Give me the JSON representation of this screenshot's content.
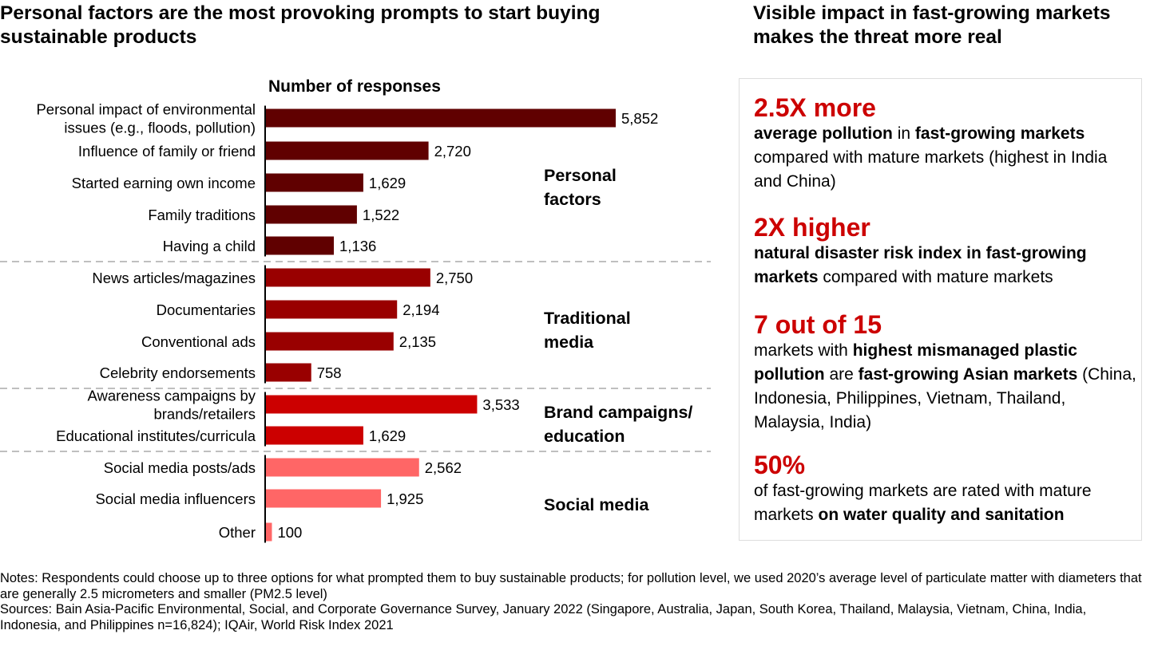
{
  "left_title": "Personal factors are the most provoking prompts to start buying sustainable products",
  "right_title": "Visible impact in fast-growing markets makes the threat more real",
  "chart_data": {
    "type": "bar",
    "orientation": "horizontal",
    "title": "Personal factors are the most provoking prompts to start buying sustainable products",
    "xlabel": "Number of responses",
    "xlim": [
      0,
      5852
    ],
    "grid": false,
    "groups": [
      {
        "name": "Personal factors",
        "color": "#600000",
        "categories": [
          "Personal impact of environmental issues (e.g., floods, pollution)",
          "Influence of family or friend",
          "Started earning own income",
          "Family traditions",
          "Having a child"
        ],
        "values": [
          5852,
          2720,
          1629,
          1522,
          1136
        ],
        "labels": [
          "5,852",
          "2,720",
          "1,629",
          "1,522",
          "1,136"
        ]
      },
      {
        "name": "Traditional media",
        "color": "#990000",
        "categories": [
          "News articles/magazines",
          "Documentaries",
          "Conventional ads",
          "Celebrity endorsements"
        ],
        "values": [
          2750,
          2194,
          2135,
          758
        ],
        "labels": [
          "2,750",
          "2,194",
          "2,135",
          "758"
        ]
      },
      {
        "name": "Brand campaigns/ education",
        "color": "#cc0000",
        "categories": [
          "Awareness campaigns by brands/retailers",
          "Educational institutes/curricula"
        ],
        "values": [
          3533,
          1629
        ],
        "labels": [
          "3,533",
          "1,629"
        ]
      },
      {
        "name": "Social media",
        "color": "#ff6666",
        "categories": [
          "Social media posts/ads",
          "Social media influencers",
          "Other"
        ],
        "values": [
          2562,
          1925,
          100
        ],
        "labels": [
          "2,562",
          "1,925",
          "100"
        ]
      }
    ]
  },
  "stats": [
    {
      "headline": "2.5X more",
      "segments": [
        {
          "t": "average pollution",
          "b": true
        },
        {
          "t": " in ",
          "b": false
        },
        {
          "t": "fast-growing markets",
          "b": true
        },
        {
          "t": " compared with mature markets (highest in India and China)",
          "b": false
        }
      ]
    },
    {
      "headline": "2X higher",
      "segments": [
        {
          "t": "natural disaster risk index in fast-growing markets",
          "b": true
        },
        {
          "t": " compared with mature markets",
          "b": false
        }
      ]
    },
    {
      "headline": "7 out of 15",
      "segments": [
        {
          "t": "markets with ",
          "b": false
        },
        {
          "t": "highest mismanaged plastic pollution",
          "b": true
        },
        {
          "t": " are ",
          "b": false
        },
        {
          "t": "fast-growing Asian markets",
          "b": true
        },
        {
          "t": " (China, Indonesia, Philippines, Vietnam, Thailand, Malaysia, India)",
          "b": false
        }
      ]
    },
    {
      "headline": "50%",
      "segments": [
        {
          "t": "of fast-growing markets are rated with mature markets ",
          "b": false
        },
        {
          "t": "on water quality and sanitation",
          "b": true
        }
      ]
    }
  ],
  "notes": "Notes: Respondents could choose up to three options for what prompted them to buy sustainable products; for pollution level, we used 2020’s average level of particulate matter with diameters that are generally 2.5 micrometers and smaller (PM2.5 level)",
  "sources": "Sources: Bain Asia-Pacific Environmental, Social, and Corporate Governance Survey, January 2022 (Singapore, Australia, Japan, South Korea, Thailand, Malaysia, Vietnam, China, India, Indonesia, and Philippines n=16,824); IQAir, World Risk Index 2021"
}
